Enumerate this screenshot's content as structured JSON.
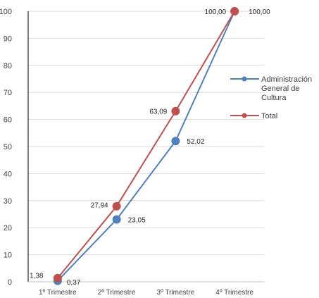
{
  "chart_data": {
    "type": "line",
    "title": "",
    "xlabel": "",
    "ylabel": "",
    "categories": [
      "1º Trimestre",
      "2º Trimestre",
      "3º Trimestre",
      "4º Trimestre"
    ],
    "ylim": [
      0,
      100
    ],
    "yticks": [
      "0",
      "10",
      "20",
      "30",
      "40",
      "50",
      "60",
      "70",
      "80",
      "90",
      "100"
    ],
    "grid": true,
    "legend_position": "right",
    "series": [
      {
        "name": "Administración General de Cultura",
        "legend_lines": [
          "Administración",
          "General de",
          "Cultura"
        ],
        "color": "#4f81bd",
        "values": [
          0.37,
          23.05,
          52.02,
          100.0
        ],
        "labels": [
          "0,37",
          "23,05",
          "52,02",
          "100,00"
        ]
      },
      {
        "name": "Total",
        "legend_lines": [
          "Total"
        ],
        "color": "#c0504d",
        "values": [
          1.38,
          27.94,
          63.09,
          100.0
        ],
        "labels": [
          "1,38",
          "27,94",
          "63,09",
          "100,00"
        ]
      }
    ]
  }
}
